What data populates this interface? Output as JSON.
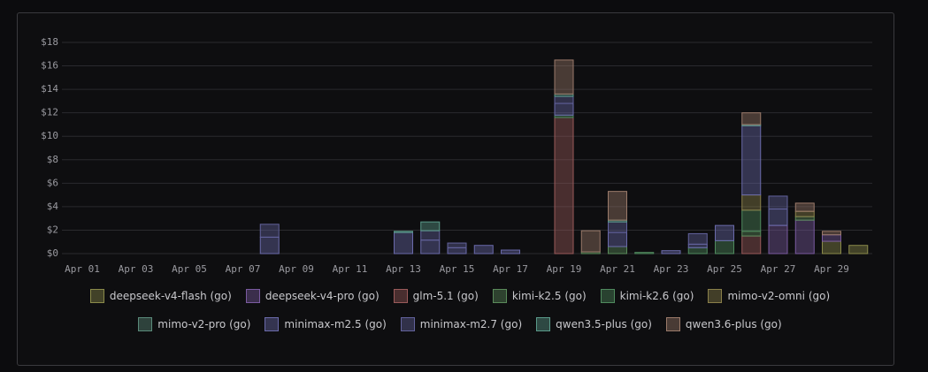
{
  "chart_data": {
    "type": "bar",
    "stacked": true,
    "categories": [
      "Apr 01",
      null,
      "Apr 03",
      null,
      "Apr 05",
      null,
      "Apr 07",
      null,
      "Apr 09",
      null,
      "Apr 11",
      null,
      "Apr 13",
      null,
      "Apr 15",
      null,
      "Apr 17",
      null,
      "Apr 19",
      null,
      "Apr 21",
      null,
      "Apr 23",
      null,
      "Apr 25",
      null,
      "Apr 27",
      null,
      "Apr 29",
      null
    ],
    "ylim": [
      0,
      18
    ],
    "yticks": [
      {
        "value": 0,
        "label": "$0"
      },
      {
        "value": 2,
        "label": "$2"
      },
      {
        "value": 4,
        "label": "$4"
      },
      {
        "value": 6,
        "label": "$6"
      },
      {
        "value": 8,
        "label": "$8"
      },
      {
        "value": 10,
        "label": "$10"
      },
      {
        "value": 12,
        "label": "$12"
      },
      {
        "value": 14,
        "label": "$14"
      },
      {
        "value": 16,
        "label": "$16"
      },
      {
        "value": 18,
        "label": "$18"
      }
    ],
    "grid": true,
    "series": [
      {
        "name": "deepseek-v4-flash (go)",
        "color": "#8a8a4a",
        "values": [
          0,
          0,
          0,
          0,
          0,
          0,
          0,
          0,
          0,
          0,
          0,
          0,
          0,
          0,
          0,
          0,
          0,
          0,
          0,
          0,
          0,
          0,
          0,
          0,
          0,
          0,
          0,
          0,
          1.05,
          0.7
        ]
      },
      {
        "name": "deepseek-v4-pro (go)",
        "color": "#7a5aa0",
        "values": [
          0,
          0,
          0,
          0,
          0,
          0,
          0,
          0,
          0,
          0,
          0,
          0,
          0,
          0,
          0,
          0,
          0,
          0,
          0,
          0,
          0,
          0,
          0,
          0,
          0,
          0,
          2.4,
          2.85,
          0.55,
          0
        ]
      },
      {
        "name": "glm-5.1 (go)",
        "color": "#9a5a5a",
        "values": [
          0,
          0,
          0,
          0,
          0,
          0,
          0,
          0,
          0,
          0,
          0,
          0,
          0,
          0,
          0,
          0,
          0,
          0,
          11.6,
          0,
          0,
          0,
          0,
          0,
          0,
          1.5,
          0,
          0,
          0,
          0
        ]
      },
      {
        "name": "kimi-k2.5 (go)",
        "color": "#5a8a5a",
        "values": [
          0,
          0,
          0,
          0,
          0,
          0,
          0,
          0,
          0,
          0,
          0,
          0,
          0,
          0,
          0,
          0,
          0,
          0,
          0,
          0.15,
          0.6,
          0,
          0,
          0,
          0,
          0.4,
          0,
          0.3,
          0,
          0
        ]
      },
      {
        "name": "kimi-k2.6 (go)",
        "color": "#4f8a5e",
        "values": [
          0,
          0,
          0,
          0,
          0,
          0,
          0,
          0,
          0,
          0,
          0,
          0,
          0,
          0,
          0,
          0,
          0,
          0,
          0.2,
          0,
          0,
          0.1,
          0,
          0.5,
          1.1,
          1.8,
          0,
          0,
          0,
          0
        ]
      },
      {
        "name": "mimo-v2-omni (go)",
        "color": "#8a804a",
        "values": [
          0,
          0,
          0,
          0,
          0,
          0,
          0,
          0,
          0,
          0,
          0,
          0,
          0,
          0,
          0,
          0,
          0,
          0,
          0,
          0,
          0,
          0,
          0,
          0,
          0,
          1.3,
          0,
          0.45,
          0,
          0
        ]
      },
      {
        "name": "mimo-v2-pro (go)",
        "color": "#5a8a7a",
        "values": [
          0,
          0,
          0,
          0,
          0,
          0,
          0,
          0,
          0,
          0,
          0,
          0,
          0,
          0,
          0,
          0,
          0,
          0,
          0,
          0,
          0,
          0,
          0,
          0,
          0,
          0,
          0,
          0,
          0,
          0
        ]
      },
      {
        "name": "minimax-m2.5 (go)",
        "color": "#6a6aaa",
        "values": [
          0,
          0,
          0,
          0,
          0,
          0,
          0,
          1.4,
          0,
          0,
          0,
          0,
          1.8,
          1.15,
          0.5,
          0.7,
          0.3,
          0,
          1.0,
          0,
          1.2,
          0,
          0.25,
          0.3,
          1.3,
          5.9,
          1.4,
          0,
          0,
          0
        ]
      },
      {
        "name": "minimax-m2.7 (go)",
        "color": "#62629c",
        "values": [
          0,
          0,
          0,
          0,
          0,
          0,
          0,
          1.1,
          0,
          0,
          0,
          0,
          0,
          0.8,
          0.4,
          0,
          0,
          0,
          0.6,
          0,
          0.9,
          0,
          0,
          0.9,
          0,
          0,
          1.1,
          0,
          0,
          0
        ]
      },
      {
        "name": "qwen3.5-plus (go)",
        "color": "#5a9a8a",
        "values": [
          0,
          0,
          0,
          0,
          0,
          0,
          0,
          0,
          0,
          0,
          0,
          0,
          0.1,
          0.75,
          0,
          0,
          0,
          0,
          0.2,
          0,
          0.15,
          0,
          0,
          0,
          0,
          0.1,
          0,
          0,
          0,
          0
        ]
      },
      {
        "name": "qwen3.6-plus (go)",
        "color": "#9a7a6a",
        "values": [
          0,
          0,
          0,
          0,
          0,
          0,
          0,
          0,
          0,
          0,
          0,
          0,
          0,
          0,
          0,
          0,
          0,
          0,
          2.9,
          1.8,
          2.45,
          0,
          0,
          0,
          0,
          1.0,
          0,
          0.7,
          0.3,
          0
        ]
      }
    ]
  }
}
